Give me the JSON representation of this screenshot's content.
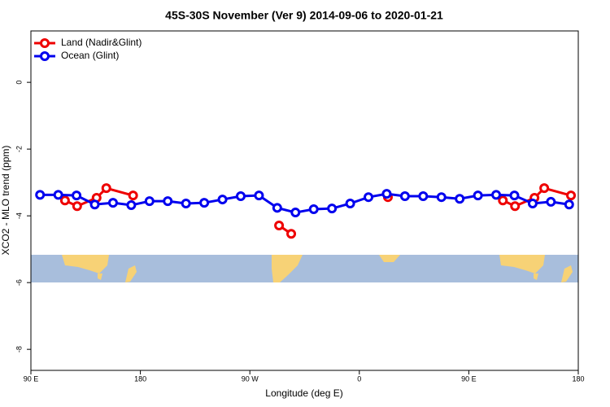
{
  "chart_data": {
    "type": "line",
    "title": "45S-30S November (Ver 9)   2014-09-06 to 2020-01-21",
    "x_label": "Longitude (deg E)",
    "y_label": "XCO2 - MLO trend (ppm)",
    "xlim": [
      90,
      540
    ],
    "ylim": [
      -8.63,
      1.54
    ],
    "xticks": [
      {
        "value": 90,
        "label": "90 E"
      },
      180,
      {
        "value": 270,
        "label": "90 W"
      },
      {
        "value": 360,
        "label": "0"
      },
      {
        "value": 450,
        "label": "90 E"
      },
      {
        "value": 540,
        "label": "180"
      }
    ],
    "yticks": [
      0,
      -2,
      -4,
      -6,
      -8
    ],
    "legend": "top-left",
    "series": [
      {
        "name": "Land (Nadir&Glint)",
        "color": "#ee0000",
        "x": [
          118,
          128,
          144,
          152,
          174,
          null,
          294,
          304,
          null,
          383.5,
          null,
          478,
          488,
          504,
          512,
          534
        ],
        "values": [
          -3.54,
          -3.71,
          -3.46,
          -3.17,
          -3.39,
          null,
          -4.29,
          -4.54,
          null,
          -3.44,
          null,
          -3.54,
          -3.71,
          -3.46,
          -3.17,
          -3.39
        ]
      },
      {
        "name": "Ocean (Glint)",
        "color": "#0000ee",
        "x": [
          97.5,
          112.5,
          127.5,
          142.5,
          157.5,
          172.5,
          187.5,
          202.5,
          217.5,
          232.5,
          247.5,
          262.5,
          277.5,
          292.5,
          307.5,
          322.5,
          337.5,
          352.5,
          367.5,
          382.5,
          397.5,
          412.5,
          427.5,
          442.5,
          457.5,
          472.5,
          487.5,
          502.5,
          517.5,
          532.5
        ],
        "values": [
          -3.37,
          -3.37,
          -3.39,
          -3.66,
          -3.61,
          -3.68,
          -3.56,
          -3.56,
          -3.63,
          -3.61,
          -3.51,
          -3.41,
          -3.39,
          -3.76,
          -3.9,
          -3.8,
          -3.78,
          -3.63,
          -3.44,
          -3.34,
          -3.41,
          -3.41,
          -3.44,
          -3.49,
          -3.39,
          -3.37,
          -3.39,
          -3.63,
          -3.58,
          -3.66
        ]
      }
    ]
  }
}
